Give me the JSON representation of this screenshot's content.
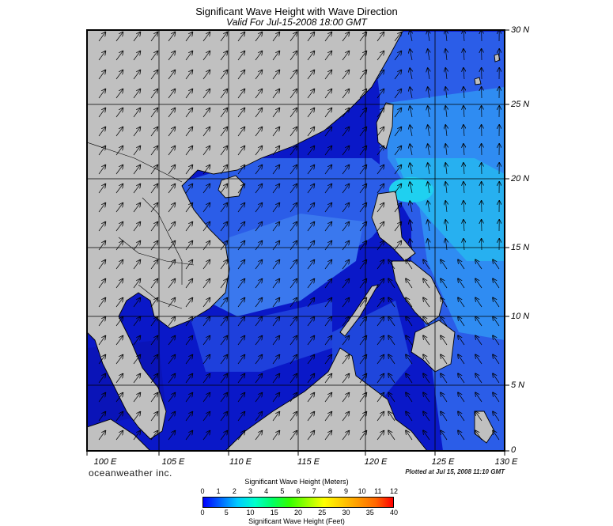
{
  "header": {
    "title": "Significant Wave Height with Wave Direction",
    "subtitle": "Valid For Jul-15-2008 18:00 GMT"
  },
  "map": {
    "lon_labels": [
      "100 E",
      "105 E",
      "110 E",
      "115 E",
      "120 E",
      "125 E",
      "130 E"
    ],
    "lat_labels": [
      "30 N",
      "25 N",
      "20 N",
      "15 N",
      "10 N",
      "5 N",
      "0"
    ],
    "colors": {
      "land": "#c0c0c0",
      "sea_deep": "#0a18c8",
      "sea_mid": "#2b5de8",
      "sea_light": "#3a8af0",
      "sea_cyan": "#22b8f0",
      "arrow": "#000000"
    }
  },
  "footer": {
    "brand": "oceanweather inc.",
    "plotted": "Plotted at Jul 15, 2008 11:10 GMT"
  },
  "legend": {
    "title_top": "Significant Wave Height (Meters)",
    "title_bottom": "Significant Wave Height (Feet)",
    "meters": [
      "0",
      "1",
      "2",
      "3",
      "4",
      "5",
      "6",
      "7",
      "8",
      "9",
      "10",
      "11",
      "12"
    ],
    "feet": [
      "0",
      "5",
      "10",
      "15",
      "20",
      "25",
      "30",
      "35",
      "40"
    ],
    "colors": [
      "#0000ff",
      "#0066ff",
      "#00ccff",
      "#00ffcc",
      "#00ff66",
      "#33ff00",
      "#99ff00",
      "#ffff00",
      "#ffcc00",
      "#ff9900",
      "#ff6600",
      "#ff0000"
    ]
  }
}
